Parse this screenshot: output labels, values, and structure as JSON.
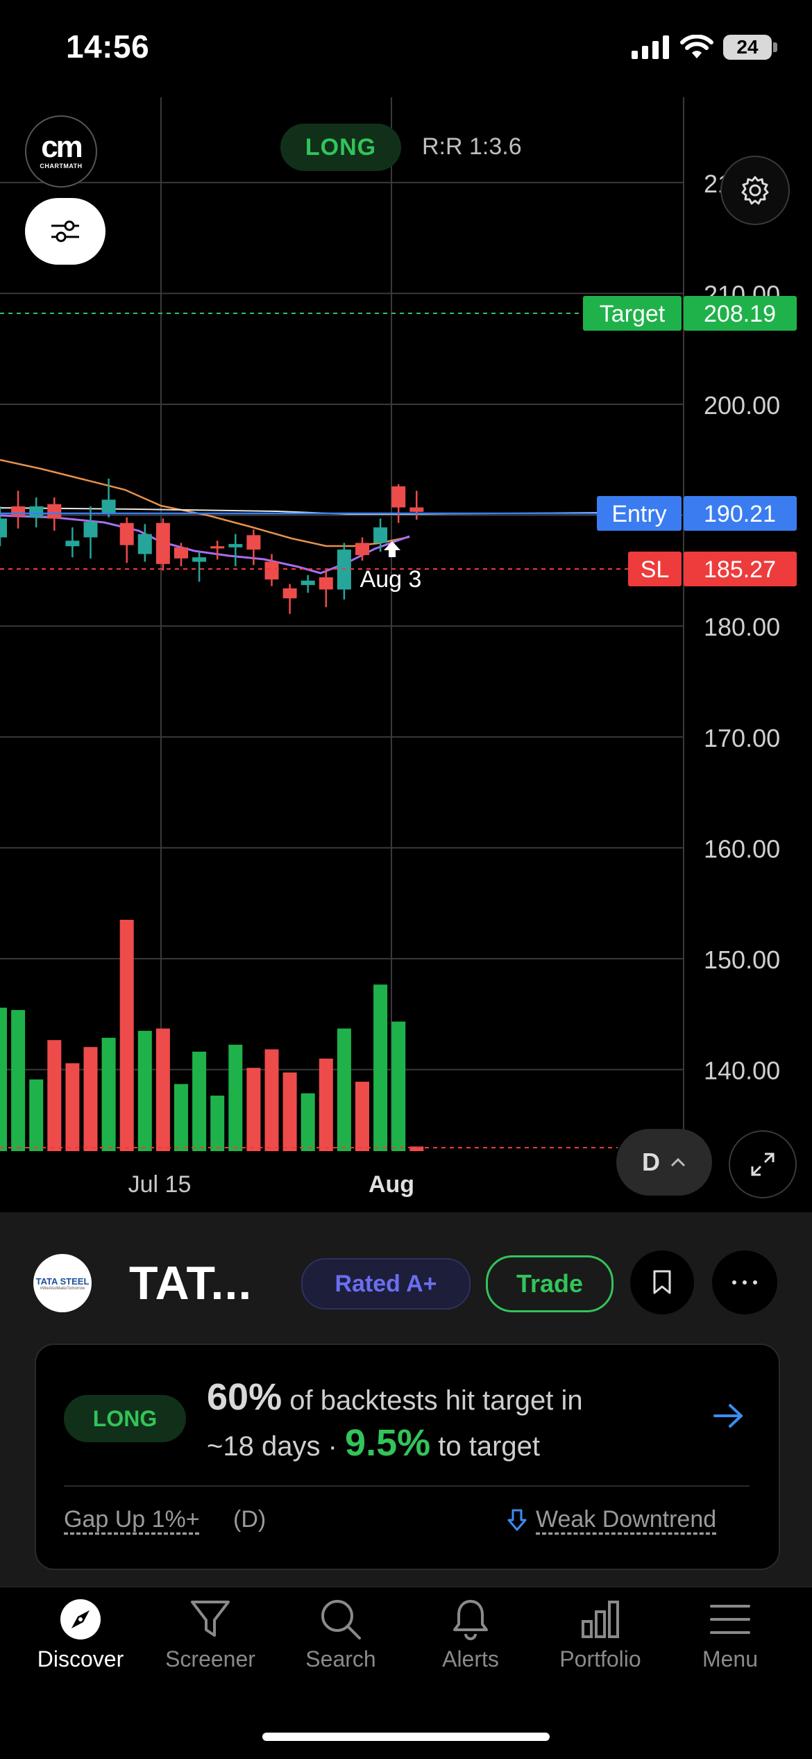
{
  "status_bar": {
    "time": "14:56",
    "battery": "24"
  },
  "header": {
    "logo_text": "CHARTMATH",
    "logo_mark": "cm",
    "direction": "LONG",
    "risk_reward": "R:R 1:3.6"
  },
  "chart_data": {
    "type": "candlestick",
    "y_ticks": [
      "140.00",
      "150.00",
      "160.00",
      "170.00",
      "180.00",
      "200.00",
      "210.00"
    ],
    "partial_tick": "21",
    "x_labels": [
      "Jul 15",
      "Aug"
    ],
    "ylim": [
      135,
      225
    ],
    "levels": [
      {
        "name": "Target",
        "value": "208.19",
        "color": "#1fb24a"
      },
      {
        "name": "Entry",
        "value": "190.21",
        "color": "#3b7df0"
      },
      {
        "name": "SL",
        "value": "185.27",
        "color": "#ee3b3b"
      }
    ],
    "signal_label": "Aug 3",
    "candles": [
      {
        "o": 188.0,
        "c": 189.7,
        "h": 190.8,
        "l": 187.2,
        "up": true
      },
      {
        "o": 190.8,
        "c": 189.9,
        "h": 192.2,
        "l": 188.8,
        "up": false
      },
      {
        "o": 189.8,
        "c": 190.8,
        "h": 191.6,
        "l": 188.9,
        "up": true
      },
      {
        "o": 191.0,
        "c": 189.7,
        "h": 191.6,
        "l": 188.6,
        "up": false
      },
      {
        "o": 187.2,
        "c": 187.7,
        "h": 188.9,
        "l": 186.2,
        "up": true
      },
      {
        "o": 188.0,
        "c": 189.4,
        "h": 190.8,
        "l": 186.1,
        "up": true
      },
      {
        "o": 190.1,
        "c": 191.4,
        "h": 193.3,
        "l": 189.8,
        "up": true
      },
      {
        "o": 189.3,
        "c": 187.3,
        "h": 189.8,
        "l": 185.7,
        "up": false
      },
      {
        "o": 186.5,
        "c": 188.3,
        "h": 189.2,
        "l": 185.8,
        "up": true
      },
      {
        "o": 189.3,
        "c": 185.6,
        "h": 189.7,
        "l": 185.0,
        "up": false
      },
      {
        "o": 187.1,
        "c": 186.1,
        "h": 187.5,
        "l": 185.4,
        "up": false
      },
      {
        "o": 185.8,
        "c": 186.2,
        "h": 186.7,
        "l": 184.0,
        "up": true
      },
      {
        "o": 187.2,
        "c": 187.0,
        "h": 187.7,
        "l": 186.0,
        "up": false
      },
      {
        "o": 187.1,
        "c": 187.4,
        "h": 188.3,
        "l": 185.4,
        "up": true
      },
      {
        "o": 188.2,
        "c": 186.9,
        "h": 188.7,
        "l": 185.5,
        "up": false
      },
      {
        "o": 185.8,
        "c": 184.2,
        "h": 186.5,
        "l": 183.6,
        "up": false
      },
      {
        "o": 183.4,
        "c": 182.5,
        "h": 183.8,
        "l": 181.1,
        "up": false
      },
      {
        "o": 183.7,
        "c": 184.1,
        "h": 184.6,
        "l": 183.0,
        "up": true
      },
      {
        "o": 184.4,
        "c": 183.3,
        "h": 185.0,
        "l": 181.7,
        "up": false
      },
      {
        "o": 183.3,
        "c": 186.9,
        "h": 187.5,
        "l": 182.4,
        "up": true
      },
      {
        "o": 187.5,
        "c": 186.4,
        "h": 188.0,
        "l": 185.9,
        "up": false
      },
      {
        "o": 187.5,
        "c": 188.9,
        "h": 189.7,
        "l": 186.7,
        "up": true
      },
      {
        "o": 192.6,
        "c": 190.7,
        "h": 192.8,
        "l": 189.3,
        "up": false
      },
      {
        "o": 190.7,
        "c": 190.3,
        "h": 192.2,
        "l": 189.6,
        "up": false
      }
    ],
    "volume": [
      {
        "v": 0.62,
        "up": true
      },
      {
        "v": 0.61,
        "up": true
      },
      {
        "v": 0.31,
        "up": true
      },
      {
        "v": 0.48,
        "up": false
      },
      {
        "v": 0.38,
        "up": false
      },
      {
        "v": 0.45,
        "up": false
      },
      {
        "v": 0.49,
        "up": true
      },
      {
        "v": 1.0,
        "up": false
      },
      {
        "v": 0.52,
        "up": true
      },
      {
        "v": 0.53,
        "up": false
      },
      {
        "v": 0.29,
        "up": true
      },
      {
        "v": 0.43,
        "up": true
      },
      {
        "v": 0.24,
        "up": true
      },
      {
        "v": 0.46,
        "up": true
      },
      {
        "v": 0.36,
        "up": false
      },
      {
        "v": 0.44,
        "up": false
      },
      {
        "v": 0.34,
        "up": false
      },
      {
        "v": 0.25,
        "up": true
      },
      {
        "v": 0.4,
        "up": false
      },
      {
        "v": 0.53,
        "up": true
      },
      {
        "v": 0.3,
        "up": false
      },
      {
        "v": 0.72,
        "up": true
      },
      {
        "v": 0.56,
        "up": true
      },
      {
        "v": 0.02,
        "up": false
      }
    ],
    "moving_averages": [
      {
        "name": "orange",
        "color": "#e8914a"
      },
      {
        "name": "purple",
        "color": "#a66ff0"
      },
      {
        "name": "white",
        "color": "#e6e6e6"
      }
    ]
  },
  "controls": {
    "timeframe": "D"
  },
  "stock": {
    "ticker": "TAT...",
    "logo_line1": "TATA STEEL",
    "logo_line2": "#WeAlsoMakeTomorrow",
    "rating": "Rated A+",
    "trade": "Trade"
  },
  "insight": {
    "direction": "LONG",
    "hit_pct": "60%",
    "line1_text": "of backtests hit target in",
    "days": "~18 days",
    "dot": "·",
    "target_pct": "9.5%",
    "line2_text": "to target",
    "signal": "Gap Up 1%+",
    "signal_tf": "(D)",
    "trend": "Weak Downtrend"
  },
  "tabs": [
    {
      "label": "Discover",
      "icon": "compass-icon",
      "active": true
    },
    {
      "label": "Screener",
      "icon": "filter-icon",
      "active": false
    },
    {
      "label": "Search",
      "icon": "search-icon",
      "active": false
    },
    {
      "label": "Alerts",
      "icon": "bell-icon",
      "active": false
    },
    {
      "label": "Portfolio",
      "icon": "bar-chart-icon",
      "active": false
    },
    {
      "label": "Menu",
      "icon": "menu-icon",
      "active": false
    }
  ]
}
